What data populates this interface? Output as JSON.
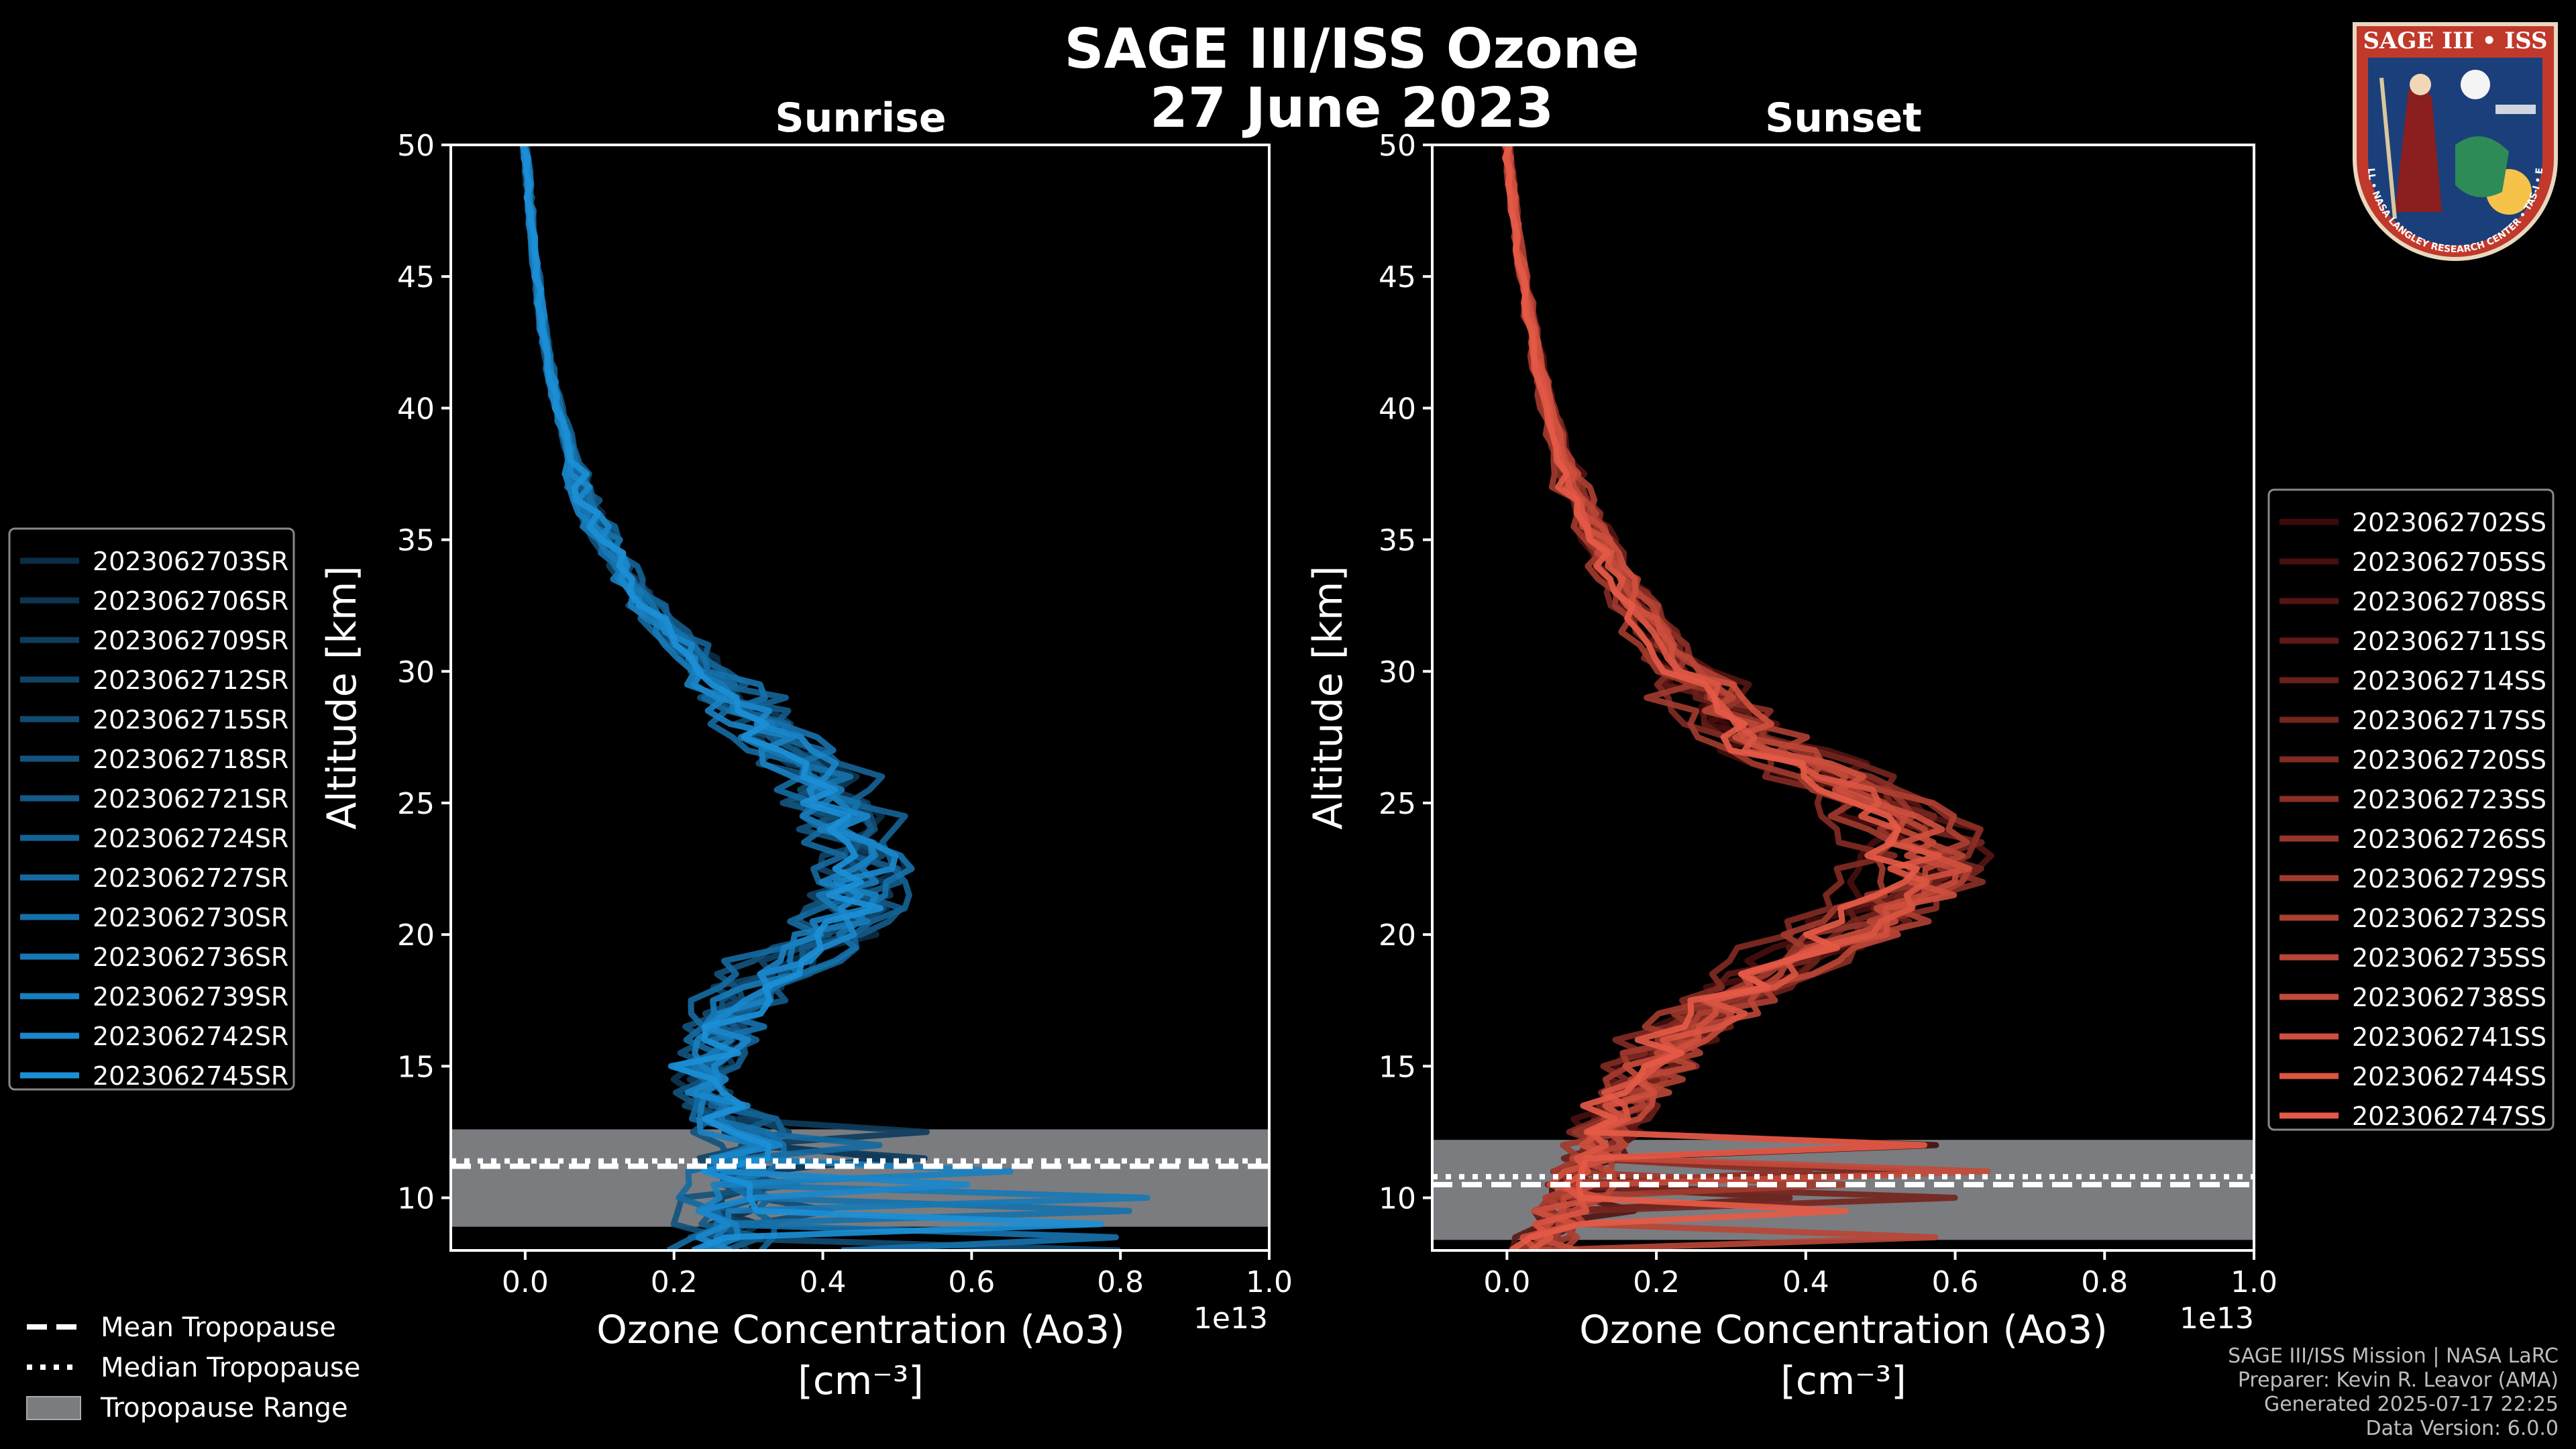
{
  "header": {
    "title": "SAGE III/ISS Ozone",
    "date": "27 June 2023"
  },
  "logo": {
    "mission_text": "SAGE III • ISS",
    "ring_text": "BALL • NASA LANGLEY RESEARCH CENTER • TAS-I • ESA"
  },
  "footer": {
    "line1": "SAGE III/ISS Mission | NASA LaRC",
    "line2": "Preparer: Kevin R. Leavor (AMA)",
    "line3": "Generated 2025-07-17 22:25",
    "line4": "Data Version: 6.0.0"
  },
  "tropopause_legend": {
    "mean": "Mean Tropopause",
    "median": "Median Tropopause",
    "range": "Tropopause Range"
  },
  "colors": {
    "sunrise_base": "#1b8fd6",
    "sunset_base": "#e55a46",
    "tropopause_fill": "#7a7c80",
    "axis": "#ffffff"
  },
  "chart_data": [
    {
      "type": "line",
      "title": "Sunrise",
      "xlabel": "Ozone Concentration (Ao3)",
      "xunit": "[cm⁻³]",
      "ylabel": "Altitude [km]",
      "xlim": [
        -0.1,
        1.0
      ],
      "ylim": [
        8,
        50
      ],
      "x_scale_label": "1e13",
      "xticks": [
        0.0,
        0.2,
        0.4,
        0.6,
        0.8,
        1.0
      ],
      "yticks": [
        10,
        15,
        20,
        25,
        30,
        35,
        40,
        45,
        50
      ],
      "tropopause": {
        "mean": 11.2,
        "median": 11.4,
        "range": [
          8.9,
          12.6
        ]
      },
      "series": [
        "2023062703SR",
        "2023062706SR",
        "2023062709SR",
        "2023062712SR",
        "2023062715SR",
        "2023062718SR",
        "2023062721SR",
        "2023062724SR",
        "2023062727SR",
        "2023062730SR",
        "2023062736SR",
        "2023062739SR",
        "2023062742SR",
        "2023062745SR"
      ],
      "mean_profile": {
        "alt": [
          8,
          9,
          10,
          11,
          12,
          13,
          14,
          15,
          16,
          17,
          18,
          19,
          20,
          21,
          22,
          23,
          24,
          25,
          26,
          27,
          28,
          30,
          32,
          34,
          36,
          38,
          40,
          42,
          44,
          46,
          48,
          50
        ],
        "conc": [
          0.26,
          0.27,
          0.28,
          0.29,
          0.3,
          0.28,
          0.24,
          0.24,
          0.26,
          0.28,
          0.31,
          0.36,
          0.42,
          0.45,
          0.46,
          0.46,
          0.44,
          0.42,
          0.4,
          0.36,
          0.32,
          0.25,
          0.18,
          0.13,
          0.09,
          0.065,
          0.045,
          0.03,
          0.02,
          0.012,
          0.006,
          0.0
        ]
      }
    },
    {
      "type": "line",
      "title": "Sunset",
      "xlabel": "Ozone Concentration (Ao3)",
      "xunit": "[cm⁻³]",
      "ylabel": "Altitude [km]",
      "xlim": [
        -0.1,
        1.0
      ],
      "ylim": [
        8,
        50
      ],
      "x_scale_label": "1e13",
      "xticks": [
        0.0,
        0.2,
        0.4,
        0.6,
        0.8,
        1.0
      ],
      "yticks": [
        10,
        15,
        20,
        25,
        30,
        35,
        40,
        45,
        50
      ],
      "tropopause": {
        "mean": 10.5,
        "median": 10.8,
        "range": [
          8.4,
          12.2
        ]
      },
      "series": [
        "2023062702SS",
        "2023062705SS",
        "2023062708SS",
        "2023062711SS",
        "2023062714SS",
        "2023062717SS",
        "2023062720SS",
        "2023062723SS",
        "2023062726SS",
        "2023062729SS",
        "2023062732SS",
        "2023062735SS",
        "2023062738SS",
        "2023062741SS",
        "2023062744SS",
        "2023062747SS"
      ],
      "mean_profile": {
        "alt": [
          8,
          9,
          10,
          11,
          12,
          13,
          14,
          15,
          16,
          17,
          18,
          19,
          20,
          21,
          22,
          23,
          24,
          25,
          26,
          27,
          28,
          30,
          32,
          34,
          36,
          38,
          40,
          42,
          44,
          46,
          48,
          50
        ],
        "conc": [
          0.05,
          0.06,
          0.08,
          0.1,
          0.12,
          0.14,
          0.16,
          0.19,
          0.22,
          0.26,
          0.31,
          0.37,
          0.44,
          0.5,
          0.54,
          0.55,
          0.53,
          0.49,
          0.42,
          0.35,
          0.3,
          0.23,
          0.18,
          0.14,
          0.1,
          0.075,
          0.055,
          0.04,
          0.028,
          0.016,
          0.008,
          0.0
        ]
      }
    }
  ]
}
